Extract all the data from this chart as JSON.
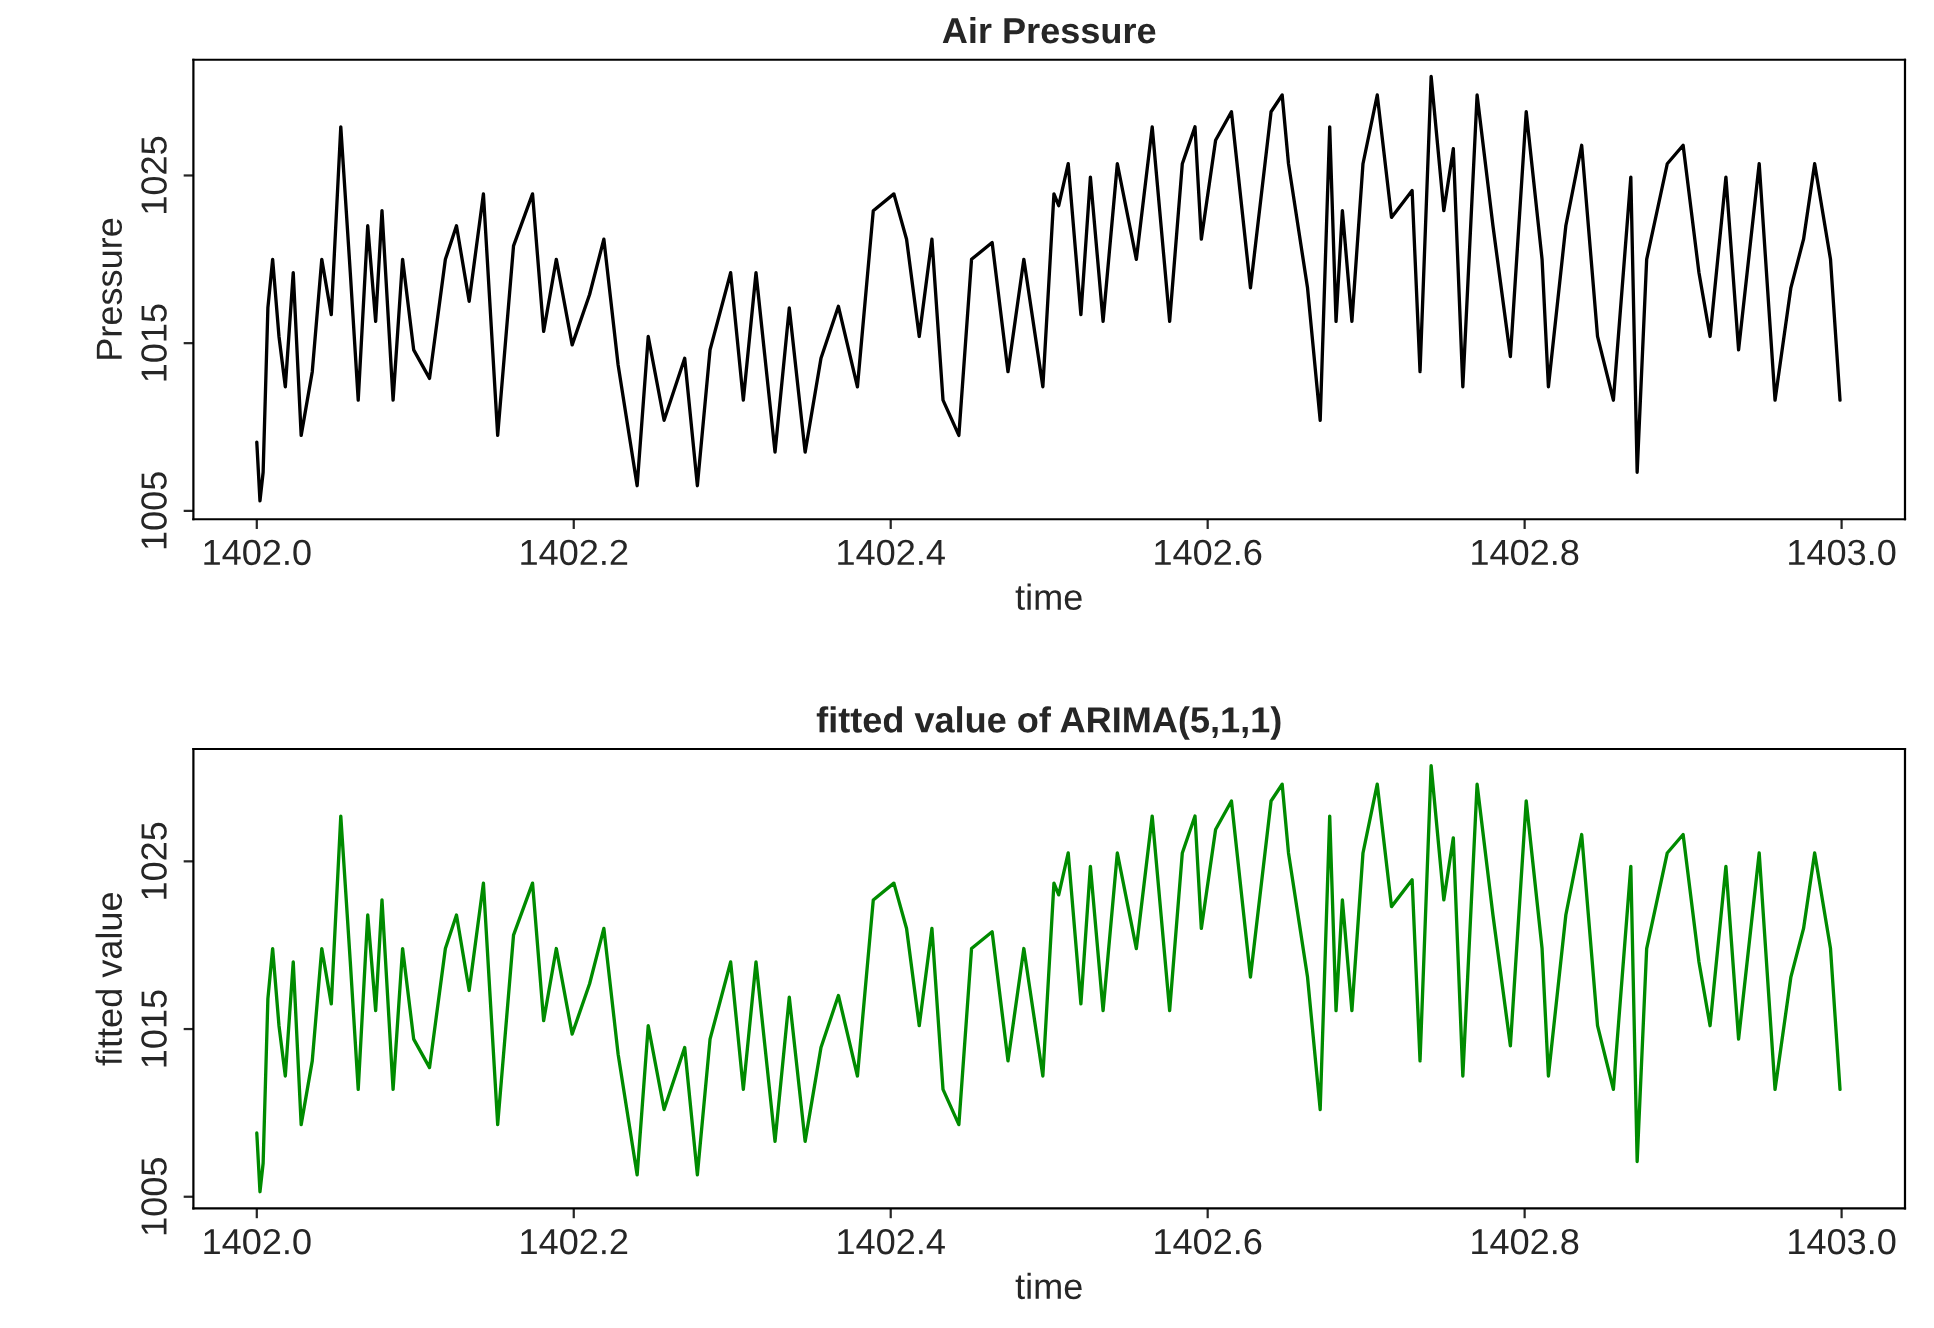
{
  "chart_data": [
    {
      "type": "line",
      "title": "Air Pressure",
      "xlabel": "time",
      "ylabel": "Pressure",
      "x": [
        1402.0,
        1402.002,
        1402.004,
        1402.007,
        1402.01,
        1402.014,
        1402.018,
        1402.023,
        1402.028,
        1402.035,
        1402.041,
        1402.047,
        1402.053,
        1402.059,
        1402.064,
        1402.07,
        1402.075,
        1402.079,
        1402.086,
        1402.092,
        1402.099,
        1402.109,
        1402.119,
        1402.126,
        1402.134,
        1402.143,
        1402.152,
        1402.162,
        1402.174,
        1402.181,
        1402.189,
        1402.199,
        1402.21,
        1402.219,
        1402.228,
        1402.24,
        1402.247,
        1402.257,
        1402.27,
        1402.278,
        1402.286,
        1402.299,
        1402.307,
        1402.315,
        1402.327,
        1402.336,
        1402.346,
        1402.356,
        1402.367,
        1402.379,
        1402.389,
        1402.402,
        1402.41,
        1402.418,
        1402.426,
        1402.433,
        1402.443,
        1402.451,
        1402.464,
        1402.474,
        1402.484,
        1402.496,
        1402.503,
        1402.506,
        1402.512,
        1402.52,
        1402.526,
        1402.534,
        1402.543,
        1402.555,
        1402.565,
        1402.576,
        1402.584,
        1402.592,
        1402.596,
        1402.605,
        1402.615,
        1402.627,
        1402.64,
        1402.647,
        1402.651,
        1402.663,
        1402.671,
        1402.677,
        1402.681,
        1402.685,
        1402.691,
        1402.698,
        1402.707,
        1402.716,
        1402.729,
        1402.734,
        1402.741,
        1402.749,
        1402.755,
        1402.761,
        1402.77,
        1402.78,
        1402.791,
        1402.801,
        1402.811,
        1402.815,
        1402.826,
        1402.836,
        1402.846,
        1402.856,
        1402.867,
        1402.871,
        1402.877,
        1402.89,
        1402.9,
        1402.91,
        1402.917,
        1402.927,
        1402.935,
        1402.948,
        1402.958,
        1402.968,
        1402.976,
        1402.983,
        1402.993,
        1402.999
      ],
      "series": [
        {
          "color": "#000000",
          "values": [
            1009.1,
            1005.6,
            1007.3,
            1017.1,
            1020.0,
            1015.4,
            1012.4,
            1019.2,
            1009.5,
            1013.3,
            1020.0,
            1016.7,
            1027.9,
            1019.2,
            1011.6,
            1022.0,
            1016.3,
            1022.9,
            1011.6,
            1020.0,
            1014.6,
            1012.9,
            1020.0,
            1022.0,
            1017.5,
            1023.9,
            1009.5,
            1020.8,
            1023.9,
            1015.7,
            1020.0,
            1014.9,
            1017.9,
            1021.2,
            1013.7,
            1006.5,
            1015.4,
            1010.4,
            1014.1,
            1006.5,
            1014.6,
            1019.2,
            1011.6,
            1019.2,
            1008.5,
            1017.1,
            1008.5,
            1014.1,
            1017.2,
            1012.4,
            1022.9,
            1023.9,
            1021.2,
            1015.4,
            1021.2,
            1011.6,
            1009.5,
            1020.0,
            1021.0,
            1013.3,
            1020.0,
            1012.4,
            1023.9,
            1023.2,
            1025.7,
            1016.7,
            1024.9,
            1016.3,
            1025.7,
            1020.0,
            1027.9,
            1016.3,
            1025.7,
            1027.9,
            1021.2,
            1027.1,
            1028.8,
            1018.3,
            1028.8,
            1029.8,
            1025.7,
            1018.3,
            1010.4,
            1027.9,
            1016.3,
            1022.9,
            1016.3,
            1025.7,
            1029.8,
            1022.5,
            1024.1,
            1013.3,
            1030.9,
            1022.9,
            1026.6,
            1012.4,
            1029.8,
            1022.0,
            1014.2,
            1028.8,
            1020.0,
            1012.4,
            1022.0,
            1026.8,
            1015.4,
            1011.6,
            1024.9,
            1007.3,
            1020.0,
            1025.7,
            1026.8,
            1019.2,
            1015.4,
            1024.9,
            1014.6,
            1025.7,
            1011.6,
            1018.3,
            1021.2,
            1025.7,
            1020.0,
            1011.6
          ]
        }
      ],
      "xlim": [
        1401.96,
        1403.04
      ],
      "ylim": [
        1004.5,
        1031.9
      ],
      "xticks": [
        {
          "value": 1402.0,
          "label": "1402.0"
        },
        {
          "value": 1402.2,
          "label": "1402.2"
        },
        {
          "value": 1402.4,
          "label": "1402.4"
        },
        {
          "value": 1402.6,
          "label": "1402.6"
        },
        {
          "value": 1402.8,
          "label": "1402.8"
        },
        {
          "value": 1403.0,
          "label": "1403.0"
        }
      ],
      "yticks": [
        1005,
        1015,
        1025
      ],
      "grid": false,
      "legend": false
    },
    {
      "type": "line",
      "title": "fitted value of ARIMA(5,1,1)",
      "xlabel": "time",
      "ylabel": "fitted value",
      "x": [
        1402.0,
        1402.002,
        1402.004,
        1402.007,
        1402.01,
        1402.014,
        1402.018,
        1402.023,
        1402.028,
        1402.035,
        1402.041,
        1402.047,
        1402.053,
        1402.059,
        1402.064,
        1402.07,
        1402.075,
        1402.079,
        1402.086,
        1402.092,
        1402.099,
        1402.109,
        1402.119,
        1402.126,
        1402.134,
        1402.143,
        1402.152,
        1402.162,
        1402.174,
        1402.181,
        1402.189,
        1402.199,
        1402.21,
        1402.219,
        1402.228,
        1402.24,
        1402.247,
        1402.257,
        1402.27,
        1402.278,
        1402.286,
        1402.299,
        1402.307,
        1402.315,
        1402.327,
        1402.336,
        1402.346,
        1402.356,
        1402.367,
        1402.379,
        1402.389,
        1402.402,
        1402.41,
        1402.418,
        1402.426,
        1402.433,
        1402.443,
        1402.451,
        1402.464,
        1402.474,
        1402.484,
        1402.496,
        1402.503,
        1402.506,
        1402.512,
        1402.52,
        1402.526,
        1402.534,
        1402.543,
        1402.555,
        1402.565,
        1402.576,
        1402.584,
        1402.592,
        1402.596,
        1402.605,
        1402.615,
        1402.627,
        1402.64,
        1402.647,
        1402.651,
        1402.663,
        1402.671,
        1402.677,
        1402.681,
        1402.685,
        1402.691,
        1402.698,
        1402.707,
        1402.716,
        1402.729,
        1402.734,
        1402.741,
        1402.749,
        1402.755,
        1402.761,
        1402.77,
        1402.78,
        1402.791,
        1402.801,
        1402.811,
        1402.815,
        1402.826,
        1402.836,
        1402.846,
        1402.856,
        1402.867,
        1402.871,
        1402.877,
        1402.89,
        1402.9,
        1402.91,
        1402.917,
        1402.927,
        1402.935,
        1402.948,
        1402.958,
        1402.968,
        1402.976,
        1402.983,
        1402.993,
        1402.999
      ],
      "series": [
        {
          "color": "#008b00",
          "values": [
            1008.8,
            1005.3,
            1007.0,
            1016.8,
            1019.8,
            1015.2,
            1012.2,
            1019.0,
            1009.3,
            1013.1,
            1019.8,
            1016.5,
            1027.7,
            1019.0,
            1011.4,
            1021.8,
            1016.1,
            1022.7,
            1011.4,
            1019.8,
            1014.4,
            1012.7,
            1019.8,
            1021.8,
            1017.3,
            1023.7,
            1009.3,
            1020.6,
            1023.7,
            1015.5,
            1019.8,
            1014.7,
            1017.7,
            1021.0,
            1013.5,
            1006.3,
            1015.2,
            1010.2,
            1013.9,
            1006.3,
            1014.4,
            1019.0,
            1011.4,
            1019.0,
            1008.3,
            1016.9,
            1008.3,
            1013.9,
            1017.0,
            1012.2,
            1022.7,
            1023.7,
            1021.0,
            1015.2,
            1021.0,
            1011.4,
            1009.3,
            1019.8,
            1020.8,
            1013.1,
            1019.8,
            1012.2,
            1023.7,
            1023.0,
            1025.5,
            1016.5,
            1024.7,
            1016.1,
            1025.5,
            1019.8,
            1027.7,
            1016.1,
            1025.5,
            1027.7,
            1021.0,
            1026.9,
            1028.6,
            1018.1,
            1028.6,
            1029.6,
            1025.5,
            1018.1,
            1010.2,
            1027.7,
            1016.1,
            1022.7,
            1016.1,
            1025.5,
            1029.6,
            1022.3,
            1023.9,
            1013.1,
            1030.7,
            1022.7,
            1026.4,
            1012.2,
            1029.6,
            1021.8,
            1014.0,
            1028.6,
            1019.8,
            1012.2,
            1021.8,
            1026.6,
            1015.2,
            1011.4,
            1024.7,
            1007.1,
            1019.8,
            1025.5,
            1026.6,
            1019.0,
            1015.2,
            1024.7,
            1014.4,
            1025.5,
            1011.4,
            1018.1,
            1021.0,
            1025.5,
            1019.8,
            1011.4
          ]
        }
      ],
      "xlim": [
        1401.96,
        1403.04
      ],
      "ylim": [
        1004.3,
        1031.7
      ],
      "xticks": [
        {
          "value": 1402.0,
          "label": "1402.0"
        },
        {
          "value": 1402.2,
          "label": "1402.2"
        },
        {
          "value": 1402.4,
          "label": "1402.4"
        },
        {
          "value": 1402.6,
          "label": "1402.6"
        },
        {
          "value": 1402.8,
          "label": "1402.8"
        },
        {
          "value": 1403.0,
          "label": "1403.0"
        }
      ],
      "yticks": [
        1005,
        1015,
        1025
      ],
      "grid": false,
      "legend": false
    }
  ]
}
